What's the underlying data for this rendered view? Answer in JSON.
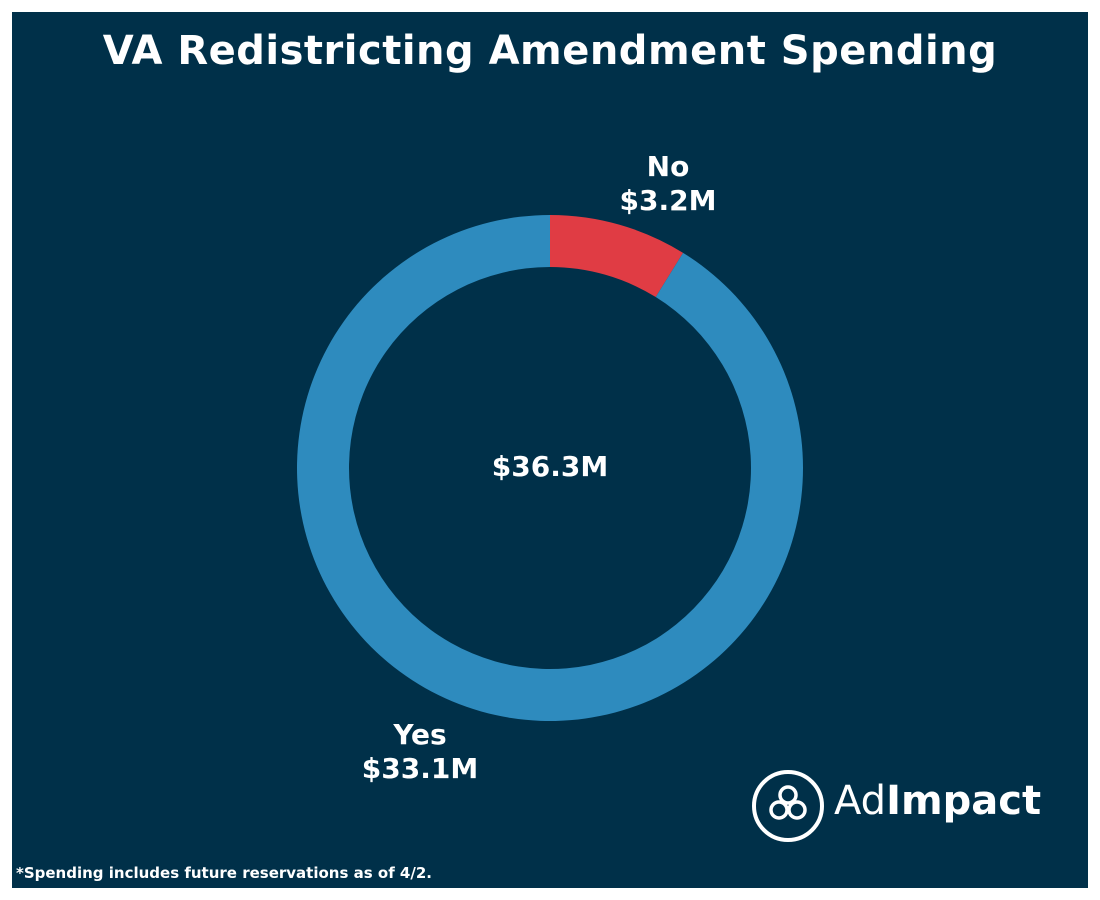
{
  "chart_data": {
    "type": "pie",
    "title": "VA Redistricting Amendment Spending",
    "categories": [
      "No",
      "Yes"
    ],
    "values": [
      3.2,
      33.1
    ],
    "value_labels": [
      "$3.2M",
      "$33.1M"
    ],
    "colors": [
      "#E03C44",
      "#2E8BBE"
    ],
    "center_label": "$36.3M",
    "legend": "none",
    "grid": false
  },
  "footnote": "*Spending includes future reservations as of 4/2.",
  "logo": {
    "text_light": "Ad",
    "text_bold": "Impact"
  },
  "colors": {
    "background": "#003049",
    "text": "#FFFFFF"
  }
}
